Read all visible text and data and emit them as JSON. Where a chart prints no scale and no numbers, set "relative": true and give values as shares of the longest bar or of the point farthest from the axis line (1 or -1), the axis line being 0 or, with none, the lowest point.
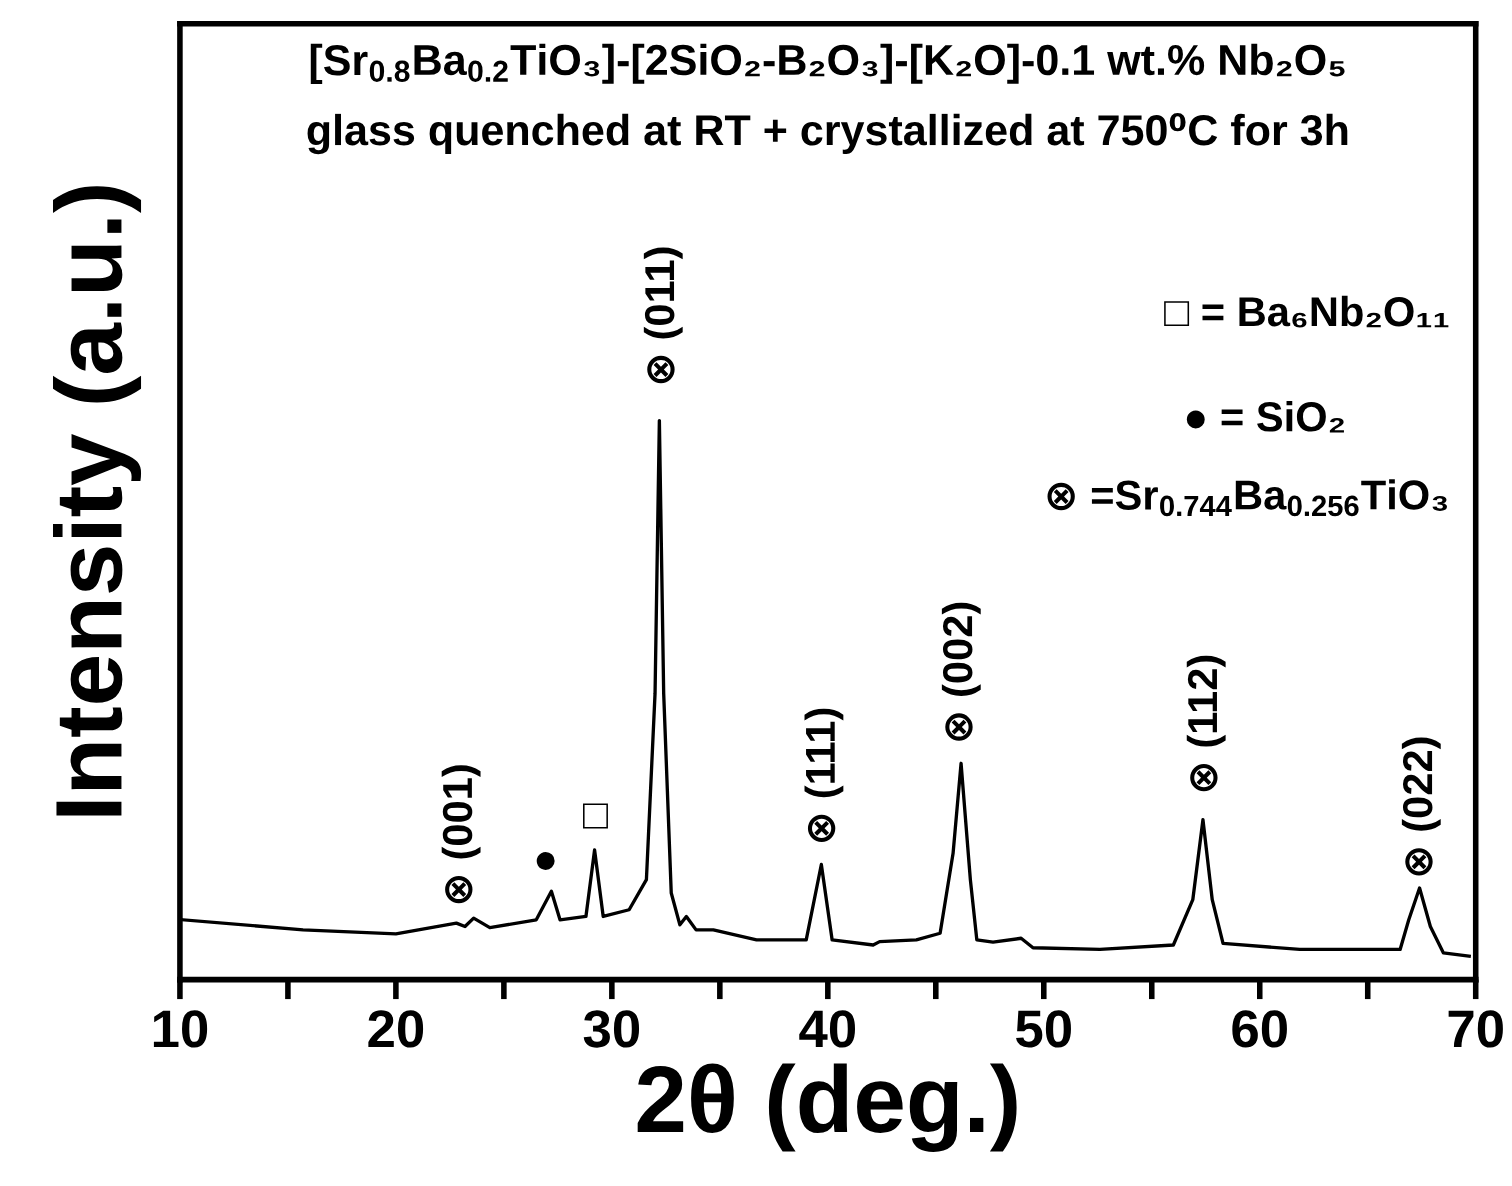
{
  "chart_data": {
    "type": "line",
    "title": "[Sr$_{0.8}$Ba$_{0.2}$TiO₃]-[2SiO₂-B₂O₃]-[K₂O]-0.1 wt.% Nb₂O₅",
    "subtitle": "glass quenched at RT + crystallized at 750⁰C for 3h",
    "xlabel": "2θ (deg.)",
    "ylabel": "Intensity (a.u.)",
    "relative": true,
    "xlim": [
      10,
      70
    ],
    "xticks": [
      10,
      {
        "value": 15,
        "label": null
      },
      20,
      {
        "value": 25,
        "label": null
      },
      30,
      {
        "value": 35,
        "label": null
      },
      40,
      {
        "value": 45,
        "label": null
      },
      50,
      {
        "value": 55,
        "label": null
      },
      60,
      {
        "value": 65,
        "label": null
      },
      70
    ],
    "grid": false,
    "legend": false,
    "marker": "none",
    "line_style": "solid",
    "tick_labels": "x",
    "series": [
      {
        "color": "#000000",
        "x": [
          10.15,
          15.7,
          20.0,
          22.8,
          23.2,
          23.6,
          24.35,
          26.5,
          27.2,
          27.6,
          28.8,
          29.2,
          29.6,
          30.8,
          31.6,
          32.0,
          32.2,
          32.4,
          32.75,
          33.15,
          33.45,
          33.9,
          34.7,
          36.7,
          39.0,
          39.7,
          40.2,
          42.1,
          42.4,
          44.1,
          45.2,
          45.8,
          46.17,
          46.6,
          46.9,
          47.65,
          48.95,
          49.5,
          52.6,
          56.0,
          56.9,
          57.37,
          57.8,
          58.3,
          61.85,
          66.5,
          66.9,
          67.4,
          67.9,
          68.5,
          69.7
        ],
        "values": [
          0.107,
          0.089,
          0.082,
          0.101,
          0.095,
          0.11,
          0.093,
          0.107,
          0.158,
          0.107,
          0.113,
          0.232,
          0.113,
          0.125,
          0.179,
          0.512,
          1.0,
          0.512,
          0.155,
          0.098,
          0.113,
          0.089,
          0.089,
          0.071,
          0.071,
          0.206,
          0.071,
          0.062,
          0.068,
          0.071,
          0.083,
          0.226,
          0.387,
          0.179,
          0.071,
          0.067,
          0.074,
          0.057,
          0.054,
          0.062,
          0.143,
          0.286,
          0.143,
          0.065,
          0.054,
          0.054,
          0.107,
          0.164,
          0.095,
          0.048,
          0.042
        ]
      }
    ],
    "annotations": [
      "⊗ (001)",
      "●",
      "□",
      "⊗ (011)",
      "⊗ (111)",
      "⊗ (002)",
      "⊗ (112)",
      "⊗ (022)",
      "□ = Ba₆Nb₂O₁₁",
      "● = SiO₂",
      "⊗ =Sr$_{0.744}$Ba$_{0.256}$TiO₃"
    ]
  }
}
